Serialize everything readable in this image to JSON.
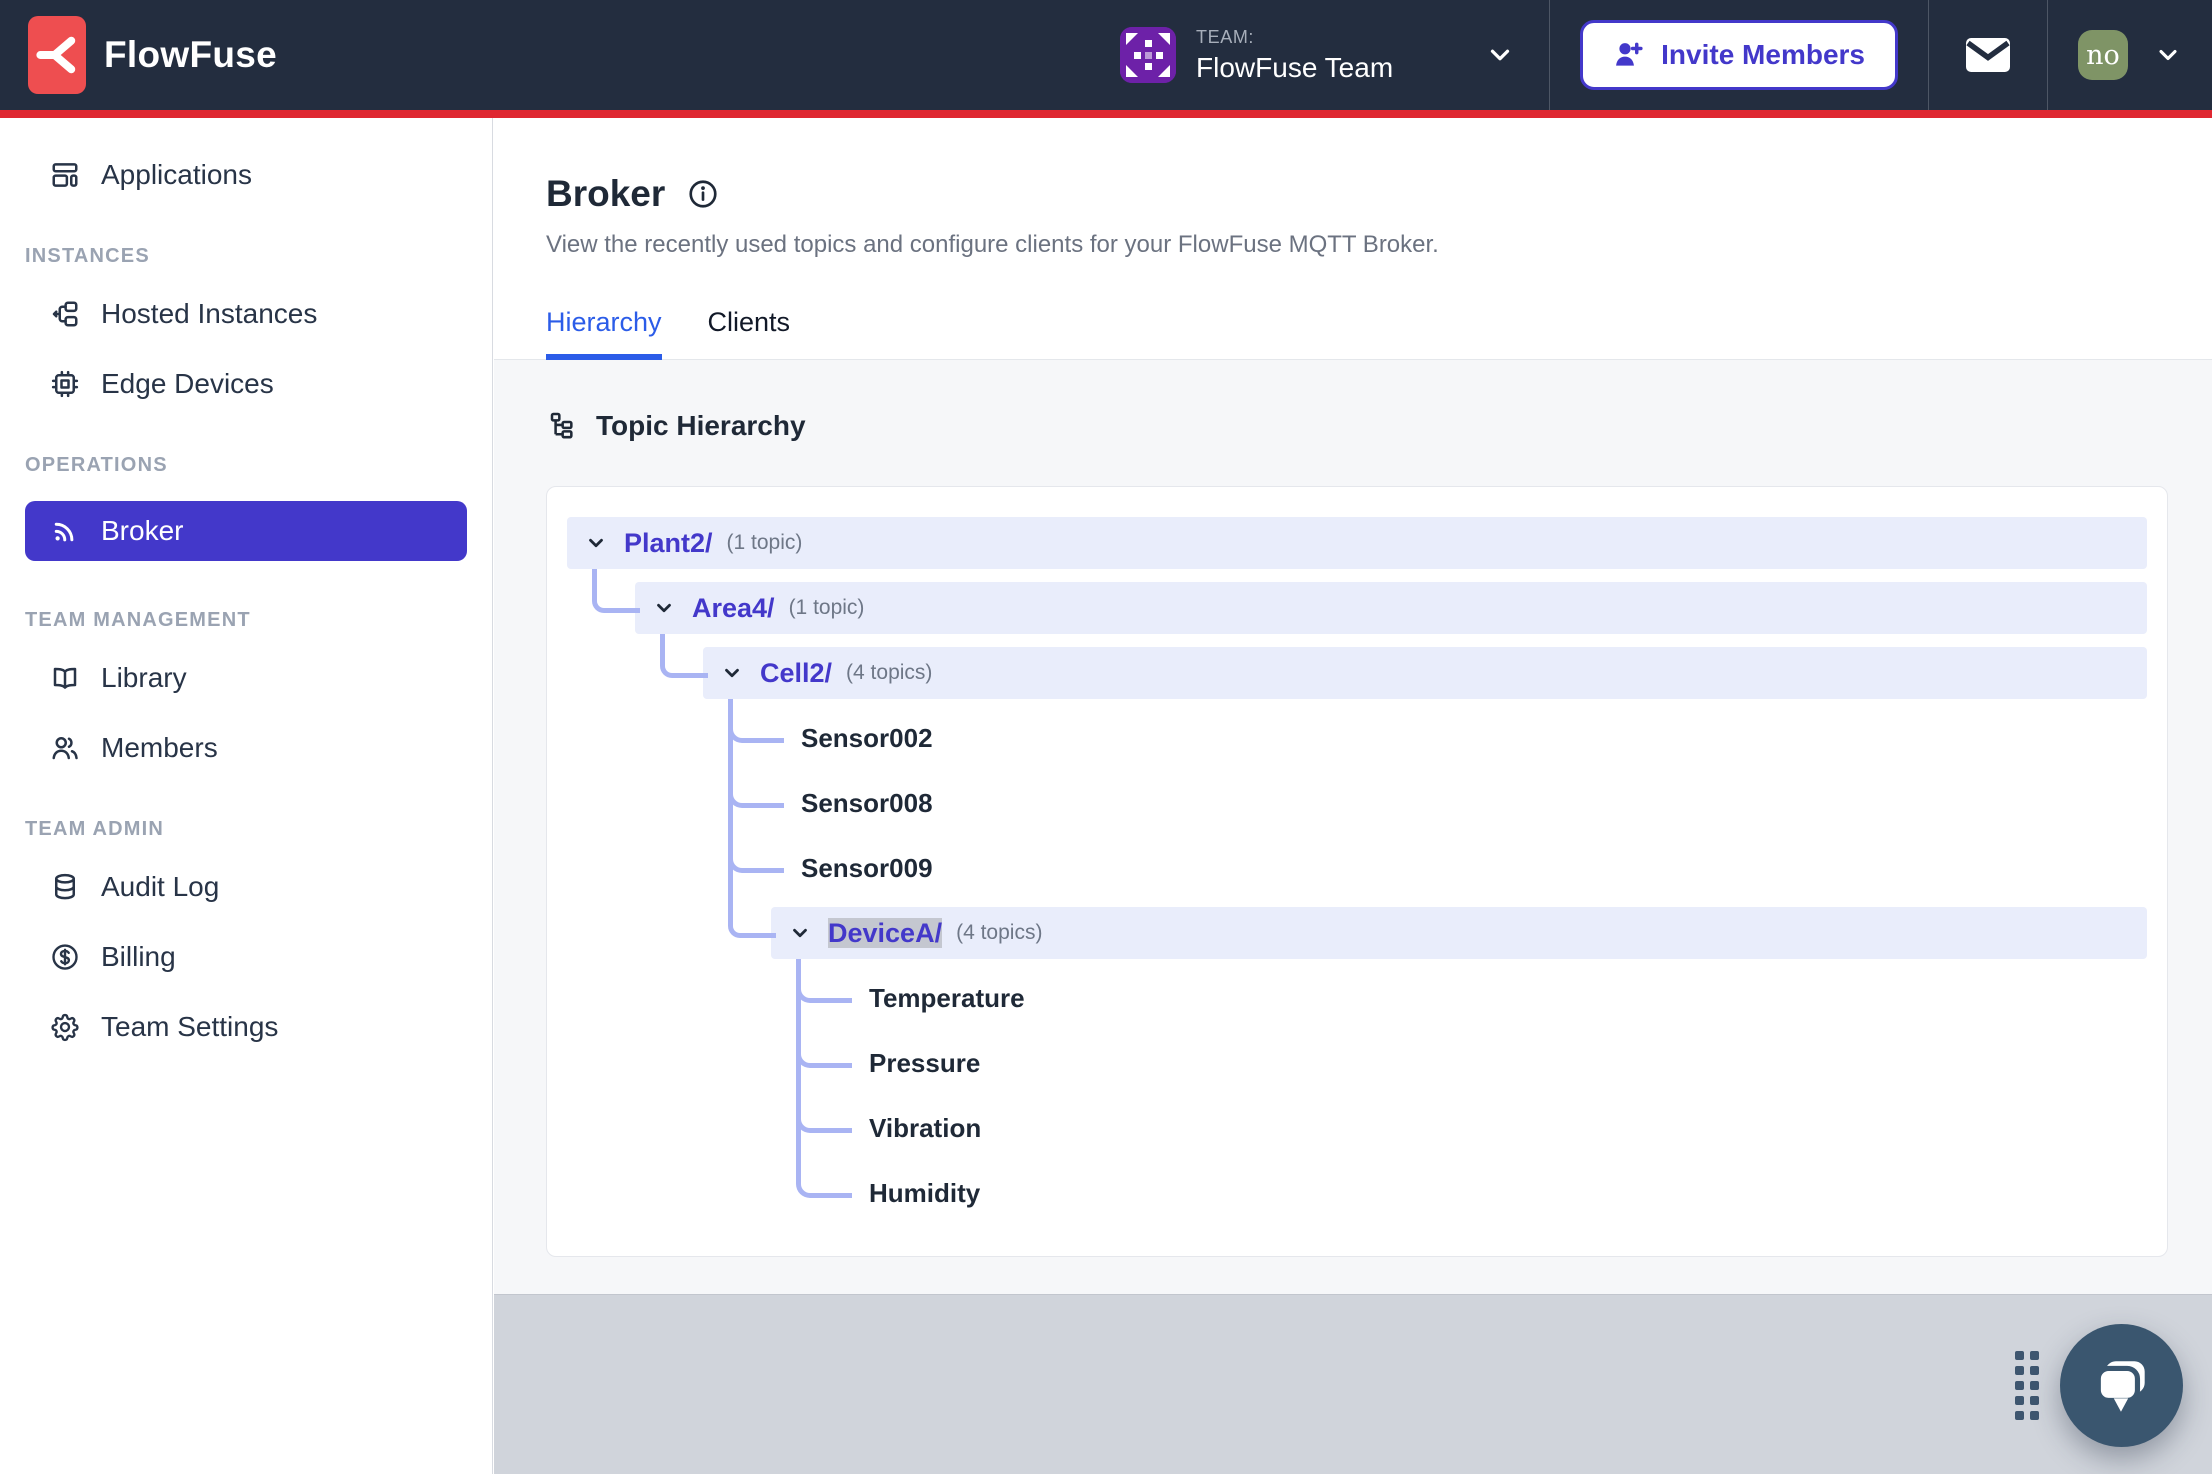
{
  "header": {
    "brand": "FlowFuse",
    "team_label": "TEAM:",
    "team_name": "FlowFuse Team",
    "invite_button": "Invite Members",
    "avatar_initials": "no"
  },
  "sidebar": {
    "sections": [
      {
        "header": null,
        "items": [
          {
            "label": "Applications",
            "icon": "applications-icon",
            "active": false
          }
        ]
      },
      {
        "header": "INSTANCES",
        "items": [
          {
            "label": "Hosted Instances",
            "icon": "hosted-instances-icon",
            "active": false
          },
          {
            "label": "Edge Devices",
            "icon": "edge-devices-icon",
            "active": false
          }
        ]
      },
      {
        "header": "OPERATIONS",
        "items": [
          {
            "label": "Broker",
            "icon": "broker-icon",
            "active": true
          }
        ]
      },
      {
        "header": "TEAM MANAGEMENT",
        "items": [
          {
            "label": "Library",
            "icon": "library-icon",
            "active": false
          },
          {
            "label": "Members",
            "icon": "members-icon",
            "active": false
          }
        ]
      },
      {
        "header": "TEAM ADMIN",
        "items": [
          {
            "label": "Audit Log",
            "icon": "audit-log-icon",
            "active": false
          },
          {
            "label": "Billing",
            "icon": "billing-icon",
            "active": false
          },
          {
            "label": "Team Settings",
            "icon": "team-settings-icon",
            "active": false
          }
        ]
      }
    ]
  },
  "main": {
    "title": "Broker",
    "description": "View the recently used topics and configure clients for your FlowFuse MQTT Broker.",
    "tabs": [
      {
        "label": "Hierarchy",
        "active": true
      },
      {
        "label": "Clients",
        "active": false
      }
    ],
    "section_title": "Topic Hierarchy",
    "tree": [
      {
        "label": "Plant2/",
        "count": "(1 topic)",
        "children": [
          {
            "label": "Area4/",
            "count": "(1 topic)",
            "children": [
              {
                "label": "Cell2/",
                "count": "(4 topics)",
                "children": [
                  {
                    "label": "Sensor002"
                  },
                  {
                    "label": "Sensor008"
                  },
                  {
                    "label": "Sensor009"
                  },
                  {
                    "label": "DeviceA/",
                    "count": "(4 topics)",
                    "selected": true,
                    "children": [
                      {
                        "label": "Temperature"
                      },
                      {
                        "label": "Pressure"
                      },
                      {
                        "label": "Vibration"
                      },
                      {
                        "label": "Humidity"
                      }
                    ]
                  }
                ]
              }
            ]
          }
        ]
      }
    ]
  },
  "colors": {
    "topbar_bg": "#232d3f",
    "accent_red": "#df2731",
    "logo_red": "#ee4e50",
    "accent_indigo": "#4338ca",
    "tab_blue": "#2b5ce8",
    "tree_row_bg": "#e9edfb",
    "tree_connector": "#a9b4f3",
    "content_bg": "#f6f7f9",
    "bottom_bg": "#d0d4db",
    "team_avatar_purple": "#6d21a8",
    "user_avatar_olive": "#7f9466",
    "chat_slate": "#3a566f",
    "selection_gray": "#c4c7d0"
  }
}
